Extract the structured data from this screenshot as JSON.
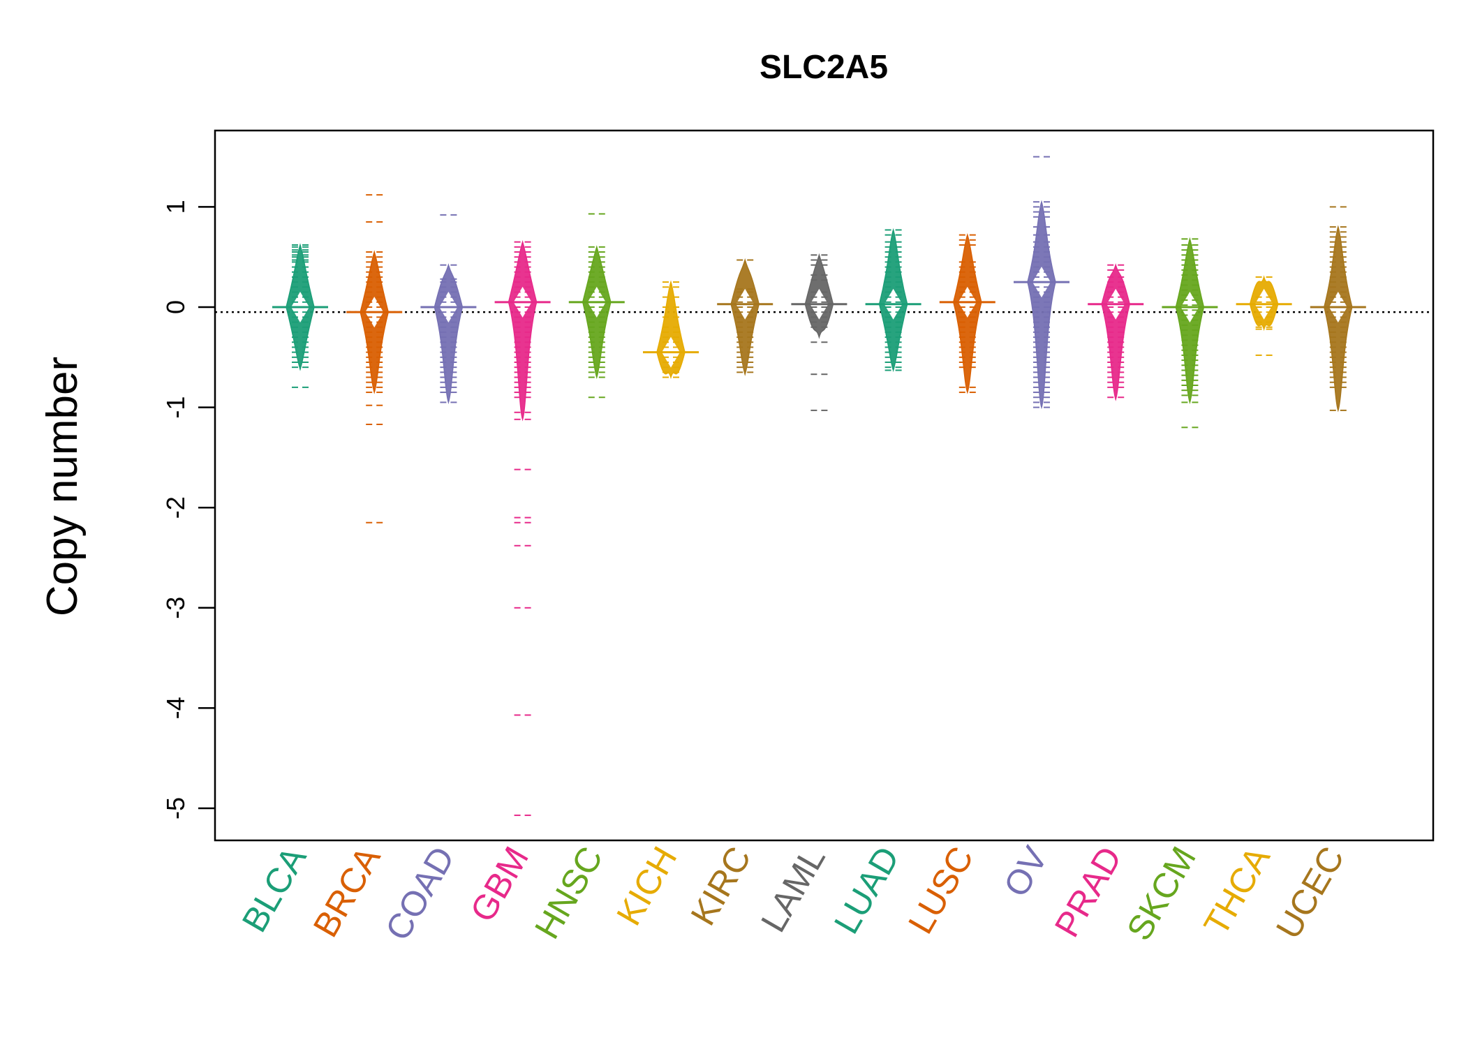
{
  "chart_data": {
    "type": "beanplot",
    "title": "SLC2A5",
    "xlabel": "",
    "ylabel": "Copy number",
    "ylim": [
      -5.3,
      1.75
    ],
    "y_ticks": [
      1,
      0,
      -1,
      -2,
      -3,
      -4,
      -5
    ],
    "y_tick_labels": [
      "1",
      "0",
      "-1",
      "-2",
      "-3",
      "-4",
      "-5"
    ],
    "reference_line": {
      "y": -0.05,
      "style": "dotted",
      "color": "#000000"
    },
    "categories": [
      "BLCA",
      "BRCA",
      "COAD",
      "GBM",
      "HNSC",
      "KICH",
      "KIRC",
      "LAML",
      "LUAD",
      "LUSC",
      "OV",
      "PRAD",
      "SKCM",
      "THCA",
      "UCEC"
    ],
    "series": [
      {
        "name": "BLCA",
        "color": "#1B9E77",
        "median": 0.0,
        "bean": [
          -0.62,
          0.62
        ],
        "points": [
          0.62,
          0.6,
          0.57,
          0.55,
          0.52,
          0.5,
          0.47,
          0.45,
          0.4,
          0.35,
          0.3,
          0.25,
          0.2,
          0.15,
          0.1,
          0.05,
          0.0,
          -0.05,
          -0.1,
          -0.15,
          -0.2,
          -0.25,
          -0.3,
          -0.35,
          -0.4,
          -0.45,
          -0.5,
          -0.55,
          -0.6,
          -0.8
        ]
      },
      {
        "name": "BRCA",
        "color": "#D95F02",
        "median": -0.05,
        "bean": [
          -0.85,
          0.55
        ],
        "points": [
          1.12,
          0.85,
          0.55,
          0.5,
          0.45,
          0.4,
          0.35,
          0.3,
          0.25,
          0.2,
          0.15,
          0.1,
          0.05,
          0.0,
          -0.05,
          -0.1,
          -0.15,
          -0.2,
          -0.25,
          -0.3,
          -0.35,
          -0.4,
          -0.45,
          -0.5,
          -0.55,
          -0.6,
          -0.65,
          -0.7,
          -0.75,
          -0.8,
          -0.85,
          -0.98,
          -1.17,
          -2.15
        ]
      },
      {
        "name": "COAD",
        "color": "#7570B3",
        "median": 0.0,
        "bean": [
          -0.95,
          0.42
        ],
        "points": [
          0.92,
          0.42,
          0.28,
          0.25,
          0.2,
          0.15,
          0.1,
          0.05,
          0.0,
          -0.05,
          -0.1,
          -0.15,
          -0.2,
          -0.25,
          -0.3,
          -0.35,
          -0.4,
          -0.45,
          -0.5,
          -0.55,
          -0.6,
          -0.65,
          -0.7,
          -0.75,
          -0.8,
          -0.85,
          -0.95
        ]
      },
      {
        "name": "GBM",
        "color": "#E7298A",
        "median": 0.05,
        "bean": [
          -1.12,
          0.65
        ],
        "points": [
          0.65,
          0.6,
          0.55,
          0.5,
          0.45,
          0.4,
          0.35,
          0.3,
          0.25,
          0.2,
          0.15,
          0.1,
          0.05,
          0.0,
          -0.05,
          -0.1,
          -0.15,
          -0.2,
          -0.25,
          -0.3,
          -0.35,
          -0.4,
          -0.45,
          -0.5,
          -0.55,
          -0.6,
          -0.65,
          -0.7,
          -0.75,
          -0.8,
          -0.85,
          -0.9,
          -1.05,
          -1.12,
          -1.62,
          -2.1,
          -2.15,
          -2.38,
          -3.0,
          -4.07,
          -5.07
        ]
      },
      {
        "name": "HNSC",
        "color": "#66A61E",
        "median": 0.05,
        "bean": [
          -0.7,
          0.6
        ],
        "points": [
          0.93,
          0.6,
          0.55,
          0.5,
          0.45,
          0.4,
          0.35,
          0.3,
          0.25,
          0.2,
          0.15,
          0.1,
          0.05,
          0.0,
          -0.05,
          -0.1,
          -0.15,
          -0.2,
          -0.25,
          -0.3,
          -0.35,
          -0.4,
          -0.45,
          -0.5,
          -0.55,
          -0.6,
          -0.65,
          -0.7,
          -0.9
        ]
      },
      {
        "name": "KICH",
        "color": "#E6AB02",
        "median": -0.45,
        "bean": [
          -0.7,
          0.25
        ],
        "points": [
          0.25,
          0.2,
          0.1,
          0.0,
          -0.1,
          -0.2,
          -0.25,
          -0.3,
          -0.35,
          -0.4,
          -0.45,
          -0.5,
          -0.55,
          -0.6,
          -0.65,
          -0.7
        ]
      },
      {
        "name": "KIRC",
        "color": "#A6761D",
        "median": 0.03,
        "bean": [
          -0.67,
          0.47
        ],
        "points": [
          0.47,
          0.18,
          0.15,
          0.1,
          0.05,
          0.0,
          -0.05,
          -0.1,
          -0.15,
          -0.2,
          -0.25,
          -0.3,
          -0.35,
          -0.4,
          -0.45,
          -0.5,
          -0.55,
          -0.6,
          -0.65
        ]
      },
      {
        "name": "LAML",
        "color": "#666666",
        "median": 0.03,
        "bean": [
          -0.3,
          0.52
        ],
        "points": [
          0.52,
          0.47,
          0.42,
          0.32,
          0.27,
          0.15,
          0.1,
          0.05,
          0.0,
          -0.05,
          -0.1,
          -0.15,
          -0.2,
          -0.35,
          -0.67,
          -1.03
        ]
      },
      {
        "name": "LUAD",
        "color": "#1B9E77",
        "median": 0.03,
        "bean": [
          -0.63,
          0.77
        ],
        "points": [
          0.77,
          0.72,
          0.65,
          0.6,
          0.55,
          0.5,
          0.45,
          0.4,
          0.35,
          0.3,
          0.25,
          0.2,
          0.15,
          0.1,
          0.05,
          0.0,
          -0.05,
          -0.1,
          -0.15,
          -0.2,
          -0.25,
          -0.3,
          -0.35,
          -0.4,
          -0.45,
          -0.5,
          -0.55,
          -0.6,
          -0.63
        ]
      },
      {
        "name": "LUSC",
        "color": "#D95F02",
        "median": 0.05,
        "bean": [
          -0.85,
          0.72
        ],
        "points": [
          0.72,
          0.67,
          0.62,
          0.45,
          0.4,
          0.35,
          0.3,
          0.25,
          0.2,
          0.15,
          0.1,
          0.05,
          0.0,
          -0.05,
          -0.1,
          -0.15,
          -0.2,
          -0.25,
          -0.3,
          -0.35,
          -0.4,
          -0.45,
          -0.5,
          -0.55,
          -0.6,
          -0.8,
          -0.85
        ]
      },
      {
        "name": "OV",
        "color": "#7570B3",
        "median": 0.25,
        "bean": [
          -1.0,
          1.05
        ],
        "points": [
          1.5,
          1.05,
          1.0,
          0.95,
          0.9,
          0.8,
          0.72,
          0.65,
          0.6,
          0.55,
          0.5,
          0.45,
          0.4,
          0.35,
          0.3,
          0.25,
          0.2,
          0.15,
          0.1,
          0.05,
          0.0,
          -0.05,
          -0.1,
          -0.15,
          -0.2,
          -0.25,
          -0.3,
          -0.35,
          -0.4,
          -0.45,
          -0.5,
          -0.55,
          -0.6,
          -0.65,
          -0.7,
          -0.75,
          -0.8,
          -0.85,
          -0.9,
          -0.95,
          -1.0
        ]
      },
      {
        "name": "PRAD",
        "color": "#E7298A",
        "median": 0.03,
        "bean": [
          -0.92,
          0.42
        ],
        "points": [
          0.42,
          0.37,
          0.3,
          0.25,
          0.2,
          0.15,
          0.1,
          0.05,
          0.0,
          -0.05,
          -0.1,
          -0.15,
          -0.2,
          -0.25,
          -0.3,
          -0.35,
          -0.4,
          -0.45,
          -0.5,
          -0.55,
          -0.6,
          -0.65,
          -0.7,
          -0.75,
          -0.8,
          -0.9
        ]
      },
      {
        "name": "SKCM",
        "color": "#66A61E",
        "median": 0.0,
        "bean": [
          -0.95,
          0.68
        ],
        "points": [
          0.68,
          0.62,
          0.57,
          0.52,
          0.47,
          0.42,
          0.37,
          0.32,
          0.27,
          0.22,
          0.17,
          0.12,
          0.07,
          0.02,
          -0.03,
          -0.08,
          -0.13,
          -0.18,
          -0.23,
          -0.28,
          -0.33,
          -0.38,
          -0.43,
          -0.48,
          -0.53,
          -0.58,
          -0.63,
          -0.68,
          -0.73,
          -0.78,
          -0.83,
          -0.88,
          -0.95,
          -1.2
        ]
      },
      {
        "name": "THCA",
        "color": "#E6AB02",
        "median": 0.03,
        "bean": [
          -0.22,
          0.3
        ],
        "points": [
          0.3,
          0.1,
          0.05,
          0.0,
          -0.05,
          -0.1,
          -0.15,
          -0.2,
          -0.22,
          -0.48
        ]
      },
      {
        "name": "UCEC",
        "color": "#A6761D",
        "median": 0.0,
        "bean": [
          -1.03,
          0.8
        ],
        "points": [
          1.0,
          0.8,
          0.75,
          0.7,
          0.65,
          0.6,
          0.55,
          0.5,
          0.45,
          0.4,
          0.35,
          0.3,
          0.25,
          0.2,
          0.15,
          0.1,
          0.05,
          0.0,
          -0.05,
          -0.1,
          -0.15,
          -0.2,
          -0.25,
          -0.3,
          -0.35,
          -0.4,
          -0.45,
          -0.5,
          -0.55,
          -0.6,
          -0.65,
          -0.7,
          -0.75,
          -0.8,
          -1.03
        ]
      }
    ]
  }
}
